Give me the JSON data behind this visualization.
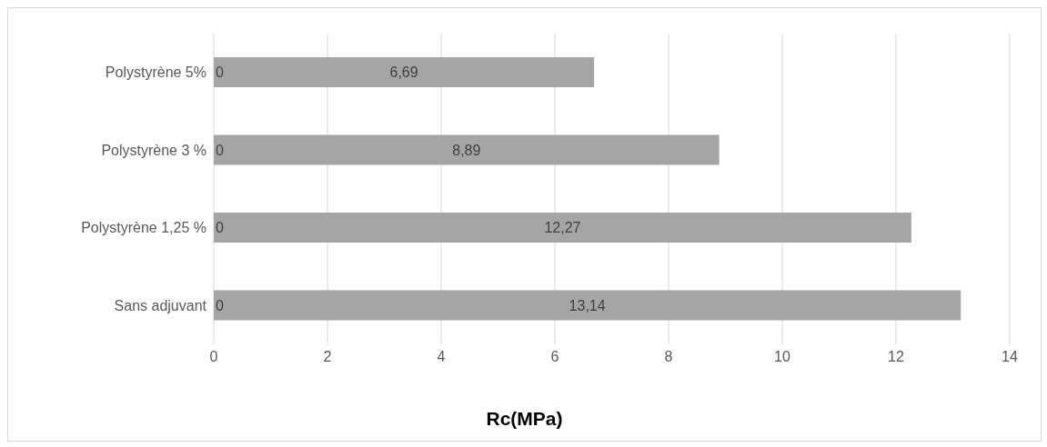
{
  "chart_data": {
    "type": "bar",
    "orientation": "horizontal",
    "xlabel": "Rc(MPa)",
    "categories": [
      "Polystyrène 5%",
      "Polystyrène 3 %",
      "Polystyrène 1,25 %",
      "Sans adjuvant"
    ],
    "series": [
      {
        "color": "#a5a5a5",
        "values": [
          6.69,
          8.89,
          12.27,
          13.14
        ],
        "value_labels": [
          "6,69",
          "8,89",
          "12,27",
          "13,14"
        ]
      },
      {
        "color": "#4472c4",
        "values": [
          0,
          0,
          0,
          0
        ],
        "value_labels": [
          "0",
          "0",
          "0",
          "0"
        ]
      }
    ],
    "xlim": [
      0,
      14
    ],
    "xticks": [
      0,
      2,
      4,
      6,
      8,
      10,
      12,
      14
    ],
    "grid": "x"
  }
}
